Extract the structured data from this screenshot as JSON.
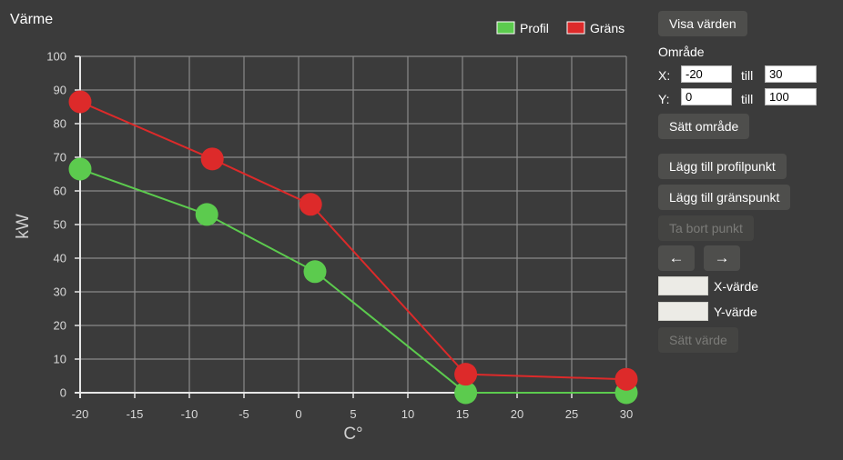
{
  "chart_data": {
    "type": "line",
    "title": "Värme",
    "xlabel": "C°",
    "ylabel": "kW",
    "xlim": [
      -20,
      30
    ],
    "ylim": [
      0,
      100
    ],
    "x_ticks": [
      -20,
      -15,
      -10,
      -5,
      0,
      5,
      10,
      15,
      20,
      25,
      30
    ],
    "y_ticks": [
      0,
      10,
      20,
      30,
      40,
      50,
      60,
      70,
      80,
      90,
      100
    ],
    "grid": true,
    "legend_position": "top-right",
    "series": [
      {
        "name": "Profil",
        "color": "#5ccb4e",
        "points": [
          [
            -20,
            66.5
          ],
          [
            -8.4,
            53
          ],
          [
            1.5,
            36
          ],
          [
            15.3,
            0
          ],
          [
            30,
            0
          ]
        ]
      },
      {
        "name": "Gräns",
        "color": "#dd2a2a",
        "points": [
          [
            -20,
            86.5
          ],
          [
            -7.9,
            69.5
          ],
          [
            1.1,
            56
          ],
          [
            15.3,
            5.5
          ],
          [
            30,
            4
          ]
        ]
      }
    ]
  },
  "controls": {
    "show_values": "Visa värden",
    "range_label": "Område",
    "x_label": "X:",
    "y_label": "Y:",
    "till": "till",
    "x_min": "-20",
    "x_max": "30",
    "y_min": "0",
    "y_max": "100",
    "set_range": "Sätt område",
    "add_profile_point": "Lägg till profilpunkt",
    "add_limit_point": "Lägg till gränspunkt",
    "remove_point": "Ta bort punkt",
    "prev_icon": "left-arrow-icon",
    "prev_glyph": "←",
    "next_icon": "right-arrow-icon",
    "next_glyph": "→",
    "x_value_label": "X-värde",
    "y_value_label": "Y-värde",
    "set_value": "Sätt värde"
  }
}
